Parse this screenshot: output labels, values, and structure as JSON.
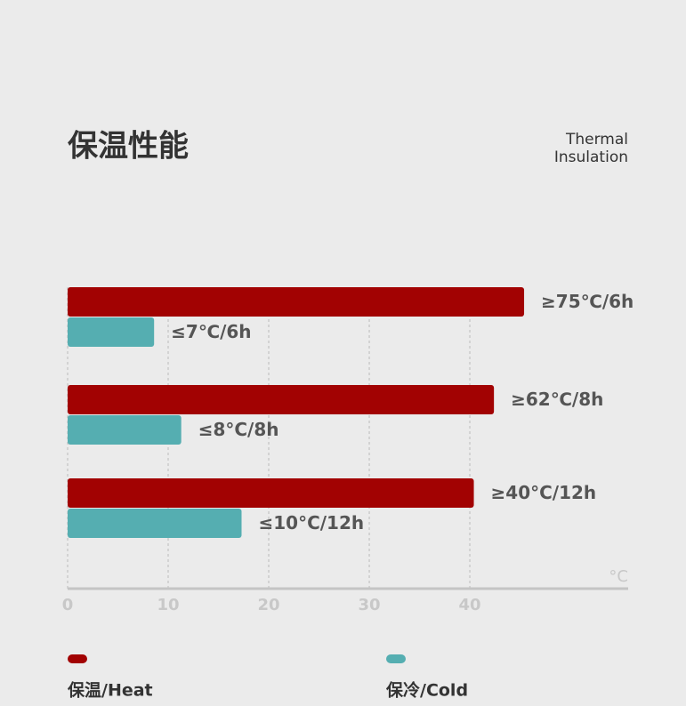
{
  "chart_data": {
    "type": "hbar",
    "title": "保温性能",
    "subtitle": [
      "Thermal",
      "Insulation"
    ],
    "x_unit": "°C",
    "categories": [
      null,
      null,
      null
    ],
    "series": [
      {
        "name": "保温/Heat",
        "color": "#a20202",
        "values": [
          45.4,
          42.4,
          40.4
        ],
        "notes": [
          "≥75℃/6h",
          "≥62℃/8h",
          "≥40°C/12h"
        ]
      },
      {
        "name": "保冷/Cold",
        "color": "#55aeb1",
        "values": [
          8.6,
          11.3,
          17.3
        ],
        "notes": [
          "≤7℃/6h",
          "≤8°C/8h",
          "≤10°C/12h"
        ]
      }
    ],
    "xlim": [
      0,
      55.75
    ],
    "xticks": [
      0,
      10,
      20,
      30,
      40
    ],
    "grid": true
  }
}
